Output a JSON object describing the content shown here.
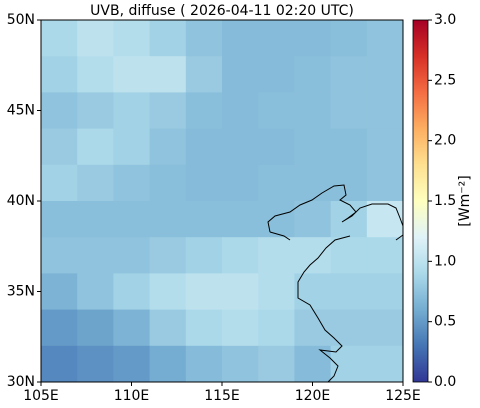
{
  "chart_data": {
    "type": "heatmap",
    "title": "UVB, diffuse ( 2026-04-11 02:20 UTC)",
    "colorbar_label": "[Wm⁻²]",
    "xlim": [
      105,
      125
    ],
    "ylim": [
      30,
      50
    ],
    "xticks": [
      {
        "value": 105,
        "label": "105E"
      },
      {
        "value": 110,
        "label": "110E"
      },
      {
        "value": 115,
        "label": "115E"
      },
      {
        "value": 120,
        "label": "120E"
      },
      {
        "value": 125,
        "label": "125E"
      }
    ],
    "yticks": [
      {
        "value": 30,
        "label": "30N"
      },
      {
        "value": 35,
        "label": "35N"
      },
      {
        "value": 40,
        "label": "40N"
      },
      {
        "value": 45,
        "label": "45N"
      },
      {
        "value": 50,
        "label": "50N"
      }
    ],
    "clim": [
      0,
      3
    ],
    "cticks": [
      {
        "value": 0,
        "label": "0.0"
      },
      {
        "value": 0.5,
        "label": "0.5"
      },
      {
        "value": 1,
        "label": "1.0"
      },
      {
        "value": 1.5,
        "label": "1.5"
      },
      {
        "value": 2,
        "label": "2.0"
      },
      {
        "value": 2.5,
        "label": "2.5"
      },
      {
        "value": 3,
        "label": "3.0"
      }
    ],
    "cmap": [
      "#313695",
      "#4575b4",
      "#74add1",
      "#abd9e9",
      "#e0f3f8",
      "#ffffbf",
      "#fee090",
      "#fdae61",
      "#f46d43",
      "#d73027",
      "#a50026"
    ],
    "lon_edges": [
      105,
      107,
      109,
      111,
      113,
      115,
      117,
      119,
      121,
      123,
      125
    ],
    "lat_edges": [
      50,
      48,
      46,
      44,
      42,
      40,
      38,
      36,
      34,
      32,
      30
    ],
    "z": [
      [
        0.9,
        1.0,
        0.95,
        0.85,
        0.75,
        0.7,
        0.7,
        0.7,
        0.72,
        0.75
      ],
      [
        0.85,
        0.95,
        1.0,
        1.0,
        0.8,
        0.7,
        0.7,
        0.72,
        0.75,
        0.75
      ],
      [
        0.75,
        0.8,
        0.85,
        0.8,
        0.72,
        0.7,
        0.72,
        0.72,
        0.75,
        0.75
      ],
      [
        0.8,
        0.9,
        0.85,
        0.75,
        0.7,
        0.7,
        0.7,
        0.72,
        0.72,
        0.75
      ],
      [
        0.85,
        0.8,
        0.75,
        0.72,
        0.7,
        0.7,
        0.72,
        0.72,
        0.72,
        0.75
      ],
      [
        0.72,
        0.72,
        0.72,
        0.72,
        0.72,
        0.72,
        0.72,
        0.75,
        0.85,
        1.05
      ],
      [
        0.75,
        0.75,
        0.75,
        0.8,
        0.85,
        0.9,
        0.95,
        0.95,
        0.9,
        0.9
      ],
      [
        0.65,
        0.75,
        0.85,
        0.95,
        1.0,
        1.0,
        0.95,
        0.85,
        0.85,
        0.85
      ],
      [
        0.5,
        0.55,
        0.65,
        0.8,
        0.9,
        0.95,
        0.9,
        0.8,
        0.8,
        0.8
      ],
      [
        0.4,
        0.45,
        0.5,
        0.6,
        0.7,
        0.75,
        0.8,
        0.7,
        0.85,
        0.85
      ]
    ]
  }
}
